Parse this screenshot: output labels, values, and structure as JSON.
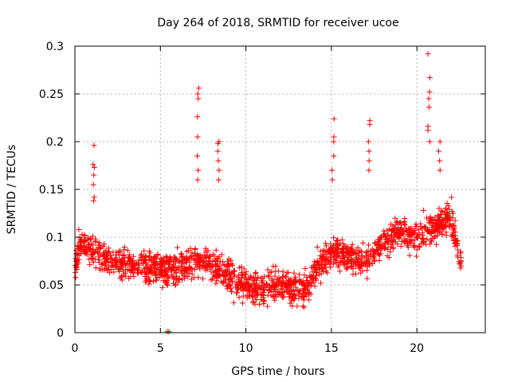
{
  "chart_data": {
    "type": "scatter",
    "title": "Day 264 of 2018, SRMTID for receiver ucoe",
    "xlabel": "GPS time / hours",
    "ylabel": "SRMTID / TECUs",
    "xlim": [
      0,
      24
    ],
    "ylim": [
      0,
      0.3
    ],
    "x_ticks": [
      0,
      5,
      10,
      15,
      20
    ],
    "x_tick_labels": [
      "0",
      "5",
      "10",
      "15",
      "20"
    ],
    "y_ticks": [
      0,
      0.05,
      0.1,
      0.15,
      0.2,
      0.25,
      0.3
    ],
    "y_tick_labels": [
      "0",
      "0.05",
      "0.1",
      "0.15",
      "0.2",
      "0.25",
      "0.3"
    ],
    "grid": true,
    "marker": "+",
    "color": "#ff0000",
    "series": [
      {
        "name": "SRMTID",
        "trend_x": [
          0,
          0.3,
          1,
          2,
          3,
          4,
          5,
          6,
          7,
          8,
          9,
          10,
          11,
          12,
          13,
          13.5,
          14,
          15,
          16,
          17,
          18,
          19,
          20,
          21,
          22,
          22.6
        ],
        "trend_y": [
          0.07,
          0.095,
          0.085,
          0.075,
          0.072,
          0.07,
          0.068,
          0.066,
          0.075,
          0.07,
          0.06,
          0.05,
          0.045,
          0.05,
          0.045,
          0.045,
          0.065,
          0.085,
          0.08,
          0.075,
          0.095,
          0.105,
          0.1,
          0.11,
          0.12,
          0.07
        ],
        "bursts": [
          {
            "x": 1.1,
            "values": [
              0.196,
              0.176,
              0.173,
              0.165,
              0.155,
              0.142,
              0.138
            ]
          },
          {
            "x": 7.2,
            "values": [
              0.256,
              0.25,
              0.245,
              0.226,
              0.205,
              0.185,
              0.17,
              0.16
            ]
          },
          {
            "x": 8.4,
            "values": [
              0.2,
              0.198,
              0.19,
              0.18,
              0.17,
              0.16
            ]
          },
          {
            "x": 15.1,
            "values": [
              0.224,
              0.205,
              0.2,
              0.185,
              0.17,
              0.16
            ]
          },
          {
            "x": 17.2,
            "values": [
              0.222,
              0.218,
              0.2,
              0.19,
              0.18,
              0.17
            ]
          },
          {
            "x": 20.7,
            "values": [
              0.292,
              0.267,
              0.252,
              0.245,
              0.236,
              0.216,
              0.212,
              0.2
            ]
          },
          {
            "x": 21.3,
            "values": [
              0.2,
              0.19,
              0.18,
              0.17
            ]
          }
        ],
        "zero_points_x": [
          5.4,
          5.5
        ]
      }
    ]
  }
}
